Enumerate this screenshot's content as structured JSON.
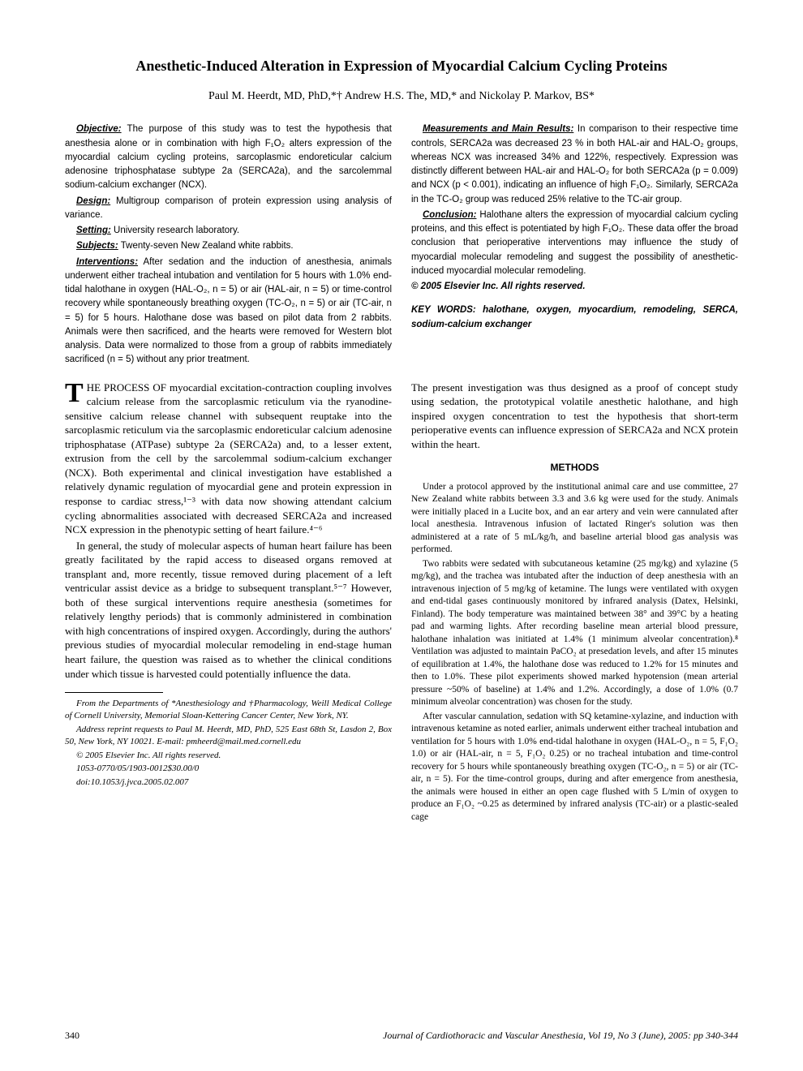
{
  "title": "Anesthetic-Induced Alteration in Expression of Myocardial Calcium Cycling Proteins",
  "authors": "Paul M. Heerdt, MD, PhD,*† Andrew H.S. The, MD,* and Nickolay P. Markov, BS*",
  "abstract": {
    "left": {
      "objective_label": "Objective:",
      "objective": " The purpose of this study was to test the hypothesis that anesthesia alone or in combination with high F₁O₂ alters expression of the myocardial calcium cycling proteins, sarcoplasmic endoreticular calcium adenosine triphosphatase subtype 2a (SERCA2a), and the sarcolemmal sodium-calcium exchanger (NCX).",
      "design_label": "Design:",
      "design": " Multigroup comparison of protein expression using analysis of variance.",
      "setting_label": "Setting:",
      "setting": " University research laboratory.",
      "subjects_label": "Subjects:",
      "subjects": " Twenty-seven New Zealand white rabbits.",
      "interventions_label": "Interventions:",
      "interventions": " After sedation and the induction of anesthesia, animals underwent either tracheal intubation and ventilation for 5 hours with 1.0% end-tidal halothane in oxygen (HAL-O₂, n = 5) or air (HAL-air, n = 5) or time-control recovery while spontaneously breathing oxygen (TC-O₂, n = 5) or air (TC-air, n = 5) for 5 hours. Halothane dose was based on pilot data from 2 rabbits. Animals were then sacrificed, and the hearts were removed for Western blot analysis. Data were normalized to those from a group of rabbits immediately sacrificed (n = 5) without any prior treatment."
    },
    "right": {
      "results_label": "Measurements and Main Results:",
      "results": " In comparison to their respective time controls, SERCA2a was decreased 23 % in both HAL-air and HAL-O₂ groups, whereas NCX was increased 34% and 122%, respectively. Expression was distinctly different between HAL-air and HAL-O₂ for both SERCA2a (p = 0.009) and NCX (p < 0.001), indicating an influence of high F₁O₂. Similarly, SERCA2a in the TC-O₂ group was reduced 25% relative to the TC-air group.",
      "conclusion_label": "Conclusion:",
      "conclusion": " Halothane alters the expression of myocardial calcium cycling proteins, and this effect is potentiated by high F₁O₂. These data offer the broad conclusion that perioperative interventions may influence the study of myocardial molecular remodeling and suggest the possibility of anesthetic-induced myocardial molecular remodeling.",
      "copyright": "© 2005 Elsevier Inc. All rights reserved.",
      "keywords": "KEY WORDS: halothane, oxygen, myocardium, remodeling, SERCA, sodium-calcium exchanger"
    }
  },
  "body": {
    "left": {
      "para1_lead": "HE PROCESS OF",
      "para1": " myocardial excitation-contraction coupling involves calcium release from the sarcoplasmic reticulum via the ryanodine-sensitive calcium release channel with subsequent reuptake into the sarcoplasmic reticulum via the sarcoplasmic endoreticular calcium adenosine triphosphatase (ATPase) subtype 2a (SERCA2a) and, to a lesser extent, extrusion from the cell by the sarcolemmal sodium-calcium exchanger (NCX). Both experimental and clinical investigation have established a relatively dynamic regulation of myocardial gene and protein expression in response to cardiac stress,¹⁻³ with data now showing attendant calcium cycling abnormalities associated with decreased SERCA2a and increased NCX expression in the phenotypic setting of heart failure.⁴⁻⁶",
      "para2": "In general, the study of molecular aspects of human heart failure has been greatly facilitated by the rapid access to diseased organs removed at transplant and, more recently, tissue removed during placement of a left ventricular assist device as a bridge to subsequent transplant.⁵⁻⁷ However, both of these surgical interventions require anesthesia (sometimes for relatively lengthy periods) that is commonly administered in combination with high concentrations of inspired oxygen. Accordingly, during the authors' previous studies of myocardial molecular remodeling in end-stage human heart failure, the question was raised as to whether the clinical conditions under which tissue is harvested could potentially influence the data."
    },
    "right": {
      "para1": "The present investigation was thus designed as a proof of concept study using sedation, the prototypical volatile anesthetic halothane, and high inspired oxygen concentration to test the hypothesis that short-term perioperative events can influence expression of SERCA2a and NCX protein within the heart.",
      "methods_head": "METHODS",
      "m1": "Under a protocol approved by the institutional animal care and use committee, 27 New Zealand white rabbits between 3.3 and 3.6 kg were used for the study. Animals were initially placed in a Lucite box, and an ear artery and vein were cannulated after local anesthesia. Intravenous infusion of lactated Ringer's solution was then administered at a rate of 5 mL/kg/h, and baseline arterial blood gas analysis was performed.",
      "m2": "Two rabbits were sedated with subcutaneous ketamine (25 mg/kg) and xylazine (5 mg/kg), and the trachea was intubated after the induction of deep anesthesia with an intravenous injection of 5 mg/kg of ketamine. The lungs were ventilated with oxygen and end-tidal gases continuously monitored by infrared analysis (Datex, Helsinki, Finland). The body temperature was maintained between 38° and 39°C by a heating pad and warming lights. After recording baseline mean arterial blood pressure, halothane inhalation was initiated at 1.4% (1 minimum alveolar concentration).⁸ Ventilation was adjusted to maintain PaCO₂ at presedation levels, and after 15 minutes of equilibration at 1.4%, the halothane dose was reduced to 1.2% for 15 minutes and then to 1.0%. These pilot experiments showed marked hypotension (mean arterial pressure ~50% of baseline) at 1.4% and 1.2%. Accordingly, a dose of 1.0% (0.7 minimum alveolar concentration) was chosen for the study.",
      "m3": "After vascular cannulation, sedation with SQ ketamine-xylazine, and induction with intravenous ketamine as noted earlier, animals underwent either tracheal intubation and ventilation for 5 hours with 1.0% end-tidal halothane in oxygen (HAL-O₂, n = 5, F₁O₂ 1.0) or air (HAL-air, n = 5, F₁O₂ 0.25) or no tracheal intubation and time-control recovery for 5 hours while spontaneously breathing oxygen (TC-O₂, n = 5) or air (TC-air, n = 5). For the time-control groups, during and after emergence from anesthesia, the animals were housed in either an open cage flushed with 5 L/min of oxygen to produce an F₁O₂ ~0.25 as determined by infrared analysis (TC-air) or a plastic-sealed cage"
    }
  },
  "footnotes": {
    "f1": "From the Departments of *Anesthesiology and †Pharmacology, Weill Medical College of Cornell University, Memorial Sloan-Kettering Cancer Center, New York, NY.",
    "f2": "Address reprint requests to Paul M. Heerdt, MD, PhD, 525 East 68th St, Lasdon 2, Box 50, New York, NY 10021. E-mail: pmheerd@mail.med.cornell.edu",
    "f3": "© 2005 Elsevier Inc. All rights reserved.",
    "f4": "1053-0770/05/1903-0012$30.00/0",
    "f5": "doi:10.1053/j.jvca.2005.02.007"
  },
  "footer": {
    "page": "340",
    "journal": "Journal of Cardiothoracic and Vascular Anesthesia, Vol 19, No 3 (June), 2005: pp 340-344"
  }
}
